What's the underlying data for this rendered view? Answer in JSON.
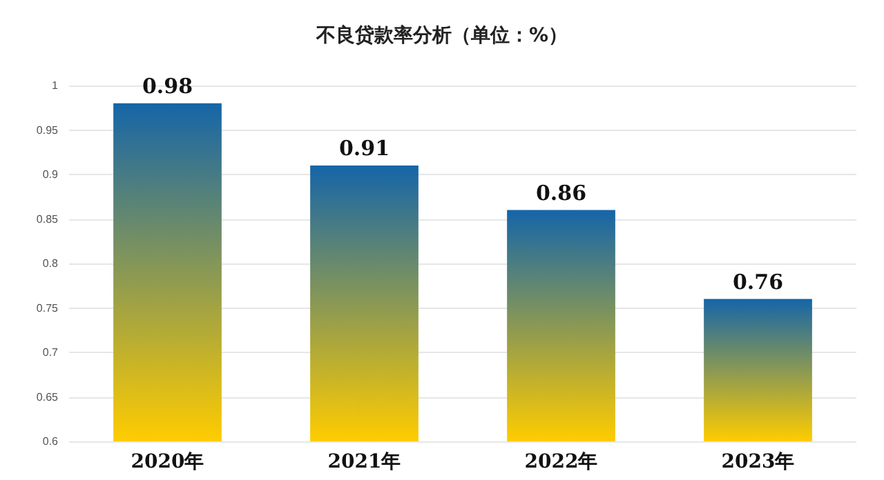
{
  "chart_data": {
    "type": "bar",
    "title": "不良贷款率分析（单位：%）",
    "categories": [
      "2020年",
      "2021年",
      "2022年",
      "2023年"
    ],
    "series": [
      {
        "color": "#1565a8",
        "values": [
          0.98,
          0.91,
          0.86,
          0.76
        ]
      }
    ],
    "ylim": [
      0.6,
      1
    ],
    "yticks": [
      0.6,
      0.65,
      0.7,
      0.75,
      0.8,
      0.85,
      0.9,
      0.95,
      1
    ],
    "grid": "y",
    "data_labels": true
  }
}
